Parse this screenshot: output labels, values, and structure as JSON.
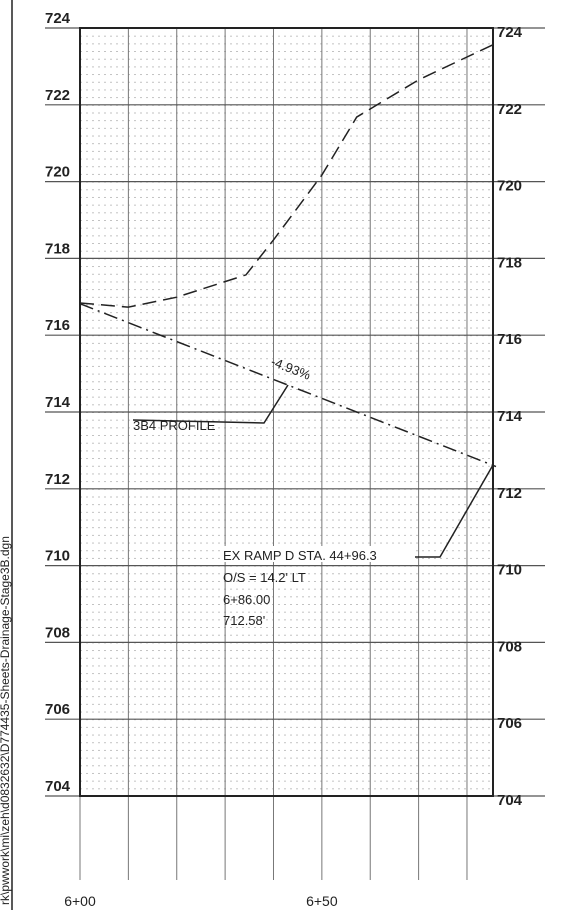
{
  "chart_data": {
    "type": "line",
    "xlim": [
      600,
      686
    ],
    "ylim": [
      704,
      724
    ],
    "yticks": [
      704,
      706,
      708,
      710,
      712,
      714,
      716,
      718,
      720,
      722,
      724
    ],
    "xticks": [
      {
        "value": 600,
        "label": "6+00"
      },
      {
        "value": 650,
        "label": "6+50"
      }
    ],
    "xgrid": [
      600,
      610,
      620,
      630,
      640,
      650,
      660,
      670,
      680
    ],
    "grid": true,
    "series": [
      {
        "style": "dashed",
        "color": "#222",
        "x": [
          600,
          610,
          620,
          634.3,
          640,
          650,
          657.2,
          670,
          685.3
        ],
        "values": [
          716.84,
          716.73,
          716.99,
          717.57,
          718.48,
          720.17,
          721.68,
          722.65,
          723.56
        ]
      },
      {
        "style": "dashdot",
        "color": "#222",
        "x": [
          600,
          686
        ],
        "values": [
          716.82,
          712.58
        ]
      }
    ],
    "annotations": {
      "grade": "-4.93%",
      "profile": "3B4 PROFILE",
      "ramp": [
        "EX RAMP D STA. 44+96.3",
        "O/S = 14.2' LT",
        "6+86.00",
        "712.58'"
      ]
    },
    "file_path": "rk\\pwwork\\mi\\zeh\\d0832632\\D774435-Sheets-Drainage-Stage3B.dgn"
  }
}
